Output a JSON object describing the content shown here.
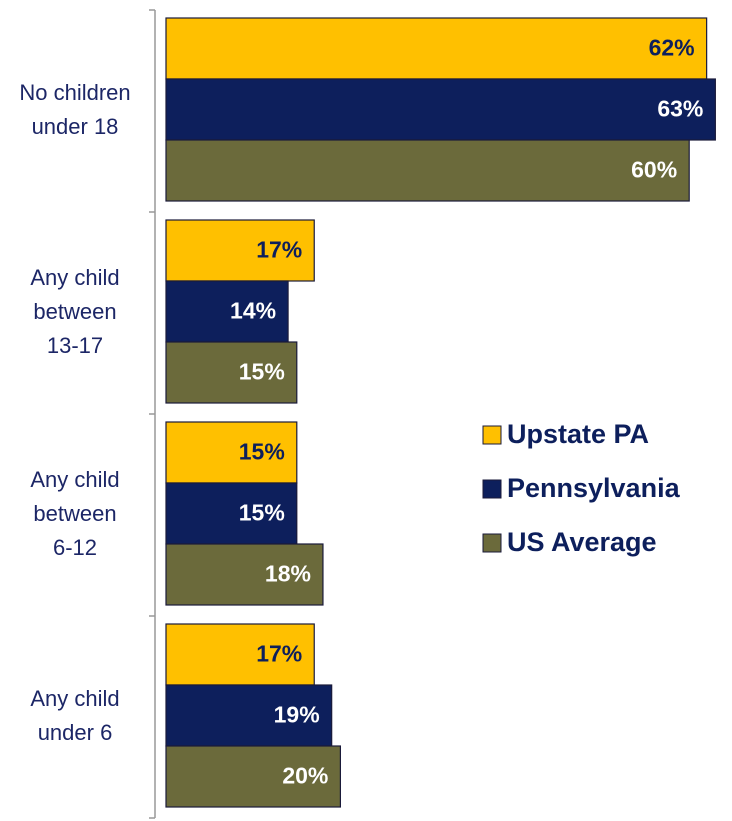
{
  "chart_data": {
    "type": "bar",
    "orientation": "horizontal",
    "categories": [
      "No children\nunder 18",
      "Any child\nbetween\n13-17",
      "Any child\nbetween\n6-12",
      "Any child\nunder 6"
    ],
    "series": [
      {
        "name": "Upstate PA",
        "color": "#ffc000",
        "values": [
          62,
          17,
          15,
          17
        ],
        "value_labels": [
          "62%",
          "17%",
          "15%",
          "17%"
        ]
      },
      {
        "name": "Pennsylvania",
        "color": "#0d1f5c",
        "values": [
          63,
          14,
          15,
          19
        ],
        "value_labels": [
          "63%",
          "14%",
          "15%",
          "19%"
        ]
      },
      {
        "name": "US Average",
        "color": "#6b6a3b",
        "values": [
          60,
          15,
          18,
          20
        ],
        "value_labels": [
          "60%",
          "15%",
          "18%",
          "20%"
        ]
      }
    ],
    "legend": "right"
  }
}
